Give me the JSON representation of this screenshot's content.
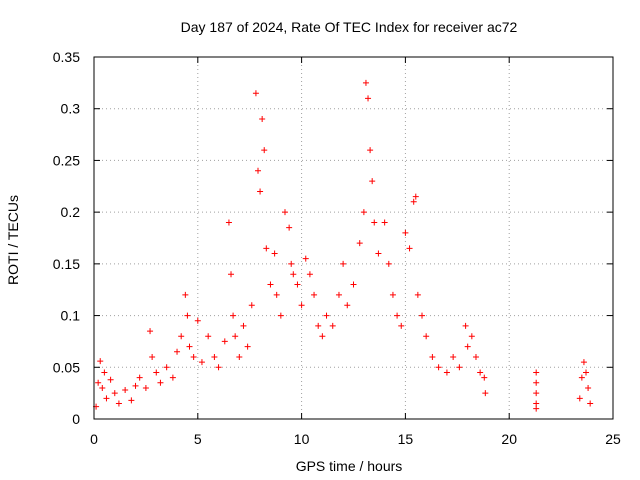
{
  "chart_data": {
    "type": "scatter",
    "title": "Day 187 of 2024, Rate Of TEC Index for receiver ac72",
    "xlabel": "GPS time / hours",
    "ylabel": "ROTI / TECUs",
    "xlim": [
      0,
      25
    ],
    "ylim": [
      0,
      0.35
    ],
    "xticks": [
      0,
      5,
      10,
      15,
      20,
      25
    ],
    "yticks": [
      0,
      0.05,
      0.1,
      0.15,
      0.2,
      0.25,
      0.3,
      0.35
    ],
    "xtick_labels": [
      "0",
      "5",
      "10",
      "15",
      "20",
      "25"
    ],
    "ytick_labels": [
      "0",
      "0.05",
      "0.1",
      "0.15",
      "0.2",
      "0.25",
      "0.3",
      "0.35"
    ],
    "grid": true,
    "marker": "+",
    "color": "#ff0000",
    "series": [
      {
        "points": [
          [
            0.1,
            0.012
          ],
          [
            0.2,
            0.035
          ],
          [
            0.3,
            0.056
          ],
          [
            0.4,
            0.03
          ],
          [
            0.5,
            0.045
          ],
          [
            0.6,
            0.02
          ],
          [
            0.8,
            0.038
          ],
          [
            1.0,
            0.025
          ],
          [
            1.2,
            0.015
          ],
          [
            1.5,
            0.028
          ],
          [
            1.8,
            0.018
          ],
          [
            2.0,
            0.032
          ],
          [
            2.2,
            0.04
          ],
          [
            2.5,
            0.03
          ],
          [
            2.7,
            0.085
          ],
          [
            2.8,
            0.06
          ],
          [
            3.0,
            0.045
          ],
          [
            3.2,
            0.035
          ],
          [
            3.5,
            0.05
          ],
          [
            3.8,
            0.04
          ],
          [
            4.0,
            0.065
          ],
          [
            4.2,
            0.08
          ],
          [
            4.4,
            0.12
          ],
          [
            4.5,
            0.1
          ],
          [
            4.6,
            0.07
          ],
          [
            4.8,
            0.06
          ],
          [
            5.0,
            0.095
          ],
          [
            5.2,
            0.055
          ],
          [
            5.5,
            0.08
          ],
          [
            5.8,
            0.06
          ],
          [
            6.0,
            0.05
          ],
          [
            6.3,
            0.075
          ],
          [
            6.5,
            0.19
          ],
          [
            6.6,
            0.14
          ],
          [
            6.7,
            0.1
          ],
          [
            6.8,
            0.08
          ],
          [
            7.0,
            0.06
          ],
          [
            7.2,
            0.09
          ],
          [
            7.4,
            0.07
          ],
          [
            7.6,
            0.11
          ],
          [
            7.8,
            0.315
          ],
          [
            7.9,
            0.24
          ],
          [
            8.0,
            0.22
          ],
          [
            8.1,
            0.29
          ],
          [
            8.2,
            0.26
          ],
          [
            8.3,
            0.165
          ],
          [
            8.5,
            0.13
          ],
          [
            8.7,
            0.16
          ],
          [
            8.8,
            0.12
          ],
          [
            9.0,
            0.1
          ],
          [
            9.2,
            0.2
          ],
          [
            9.4,
            0.185
          ],
          [
            9.5,
            0.15
          ],
          [
            9.6,
            0.14
          ],
          [
            9.8,
            0.13
          ],
          [
            10.0,
            0.11
          ],
          [
            10.2,
            0.155
          ],
          [
            10.4,
            0.14
          ],
          [
            10.6,
            0.12
          ],
          [
            10.8,
            0.09
          ],
          [
            11.0,
            0.08
          ],
          [
            11.2,
            0.1
          ],
          [
            11.5,
            0.09
          ],
          [
            11.8,
            0.12
          ],
          [
            12.0,
            0.15
          ],
          [
            12.2,
            0.11
          ],
          [
            12.5,
            0.13
          ],
          [
            12.8,
            0.17
          ],
          [
            13.0,
            0.2
          ],
          [
            13.1,
            0.325
          ],
          [
            13.2,
            0.31
          ],
          [
            13.3,
            0.26
          ],
          [
            13.4,
            0.23
          ],
          [
            13.5,
            0.19
          ],
          [
            13.7,
            0.16
          ],
          [
            14.0,
            0.19
          ],
          [
            14.2,
            0.15
          ],
          [
            14.4,
            0.12
          ],
          [
            14.6,
            0.1
          ],
          [
            14.8,
            0.09
          ],
          [
            15.0,
            0.18
          ],
          [
            15.2,
            0.165
          ],
          [
            15.4,
            0.21
          ],
          [
            15.5,
            0.215
          ],
          [
            15.6,
            0.12
          ],
          [
            15.8,
            0.1
          ],
          [
            16.0,
            0.08
          ],
          [
            16.3,
            0.06
          ],
          [
            16.6,
            0.05
          ],
          [
            17.0,
            0.045
          ],
          [
            17.3,
            0.06
          ],
          [
            17.6,
            0.05
          ],
          [
            17.9,
            0.09
          ],
          [
            18.0,
            0.07
          ],
          [
            18.2,
            0.08
          ],
          [
            18.4,
            0.06
          ],
          [
            18.6,
            0.045
          ],
          [
            18.8,
            0.04
          ],
          [
            18.85,
            0.025
          ],
          [
            21.3,
            0.045
          ],
          [
            21.3,
            0.035
          ],
          [
            21.3,
            0.025
          ],
          [
            21.3,
            0.015
          ],
          [
            21.3,
            0.01
          ],
          [
            23.4,
            0.02
          ],
          [
            23.5,
            0.04
          ],
          [
            23.6,
            0.055
          ],
          [
            23.7,
            0.045
          ],
          [
            23.8,
            0.03
          ],
          [
            23.9,
            0.015
          ]
        ]
      }
    ]
  }
}
